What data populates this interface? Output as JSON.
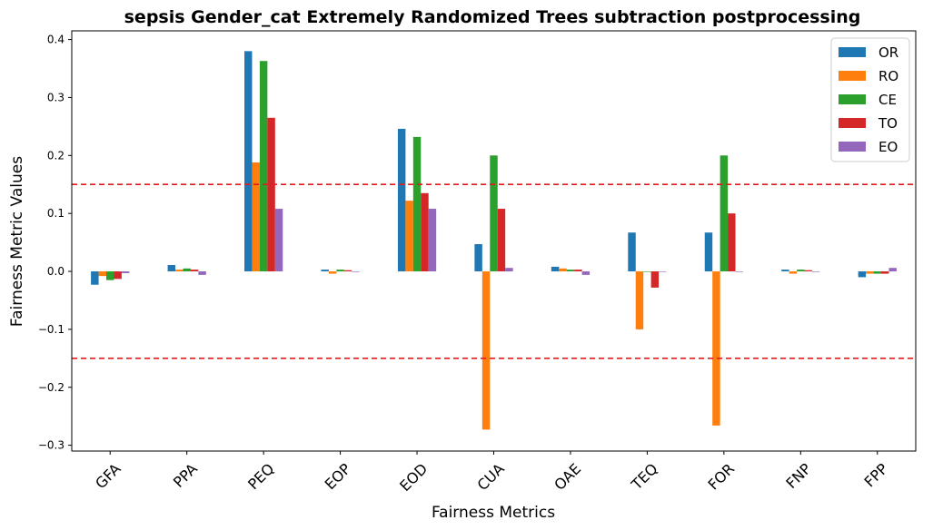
{
  "chart_data": {
    "type": "bar",
    "title": "sepsis Gender_cat Extremely Randomized Trees subtraction postprocessing",
    "xlabel": "Fairness Metrics",
    "ylabel": "Fairness Metric Values",
    "ylim": [
      -0.31,
      0.415
    ],
    "yticks": [
      -0.3,
      -0.2,
      -0.1,
      0.0,
      0.1,
      0.2,
      0.3,
      0.4
    ],
    "ytick_labels": [
      "−0.3",
      "−0.2",
      "−0.1",
      "0.0",
      "0.1",
      "0.2",
      "0.3",
      "0.4"
    ],
    "categories": [
      "GFA",
      "PPA",
      "PEQ",
      "EOP",
      "EOD",
      "CUA",
      "OAE",
      "TEQ",
      "FOR",
      "FNP",
      "FPP"
    ],
    "thresholds": [
      0.15,
      -0.15
    ],
    "threshold_color": "#e41a1c",
    "grid": false,
    "legend_position": "top-right",
    "series": [
      {
        "name": "OR",
        "color": "#1f77b4",
        "values": [
          -0.023,
          0.011,
          0.38,
          0.003,
          0.246,
          0.047,
          0.008,
          0.067,
          0.067,
          0.003,
          -0.01
        ]
      },
      {
        "name": "RO",
        "color": "#ff7f0e",
        "values": [
          -0.008,
          0.003,
          0.188,
          -0.004,
          0.122,
          -0.273,
          0.005,
          -0.1,
          -0.266,
          -0.004,
          -0.004
        ]
      },
      {
        "name": "CE",
        "color": "#2ca02c",
        "values": [
          -0.015,
          0.005,
          0.363,
          0.003,
          0.232,
          0.2,
          0.003,
          0.0,
          0.2,
          0.003,
          -0.004
        ]
      },
      {
        "name": "TO",
        "color": "#d62728",
        "values": [
          -0.013,
          0.003,
          0.265,
          0.002,
          0.135,
          0.108,
          0.003,
          -0.028,
          0.1,
          0.002,
          -0.004
        ]
      },
      {
        "name": "EO",
        "color": "#9467bd",
        "values": [
          -0.003,
          -0.006,
          0.108,
          0.0,
          0.108,
          0.006,
          -0.006,
          0.0,
          0.0,
          0.0,
          0.006
        ]
      }
    ]
  }
}
